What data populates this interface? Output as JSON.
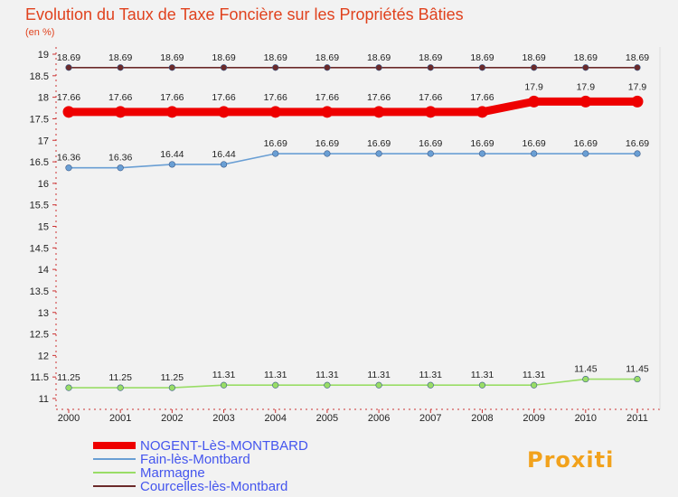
{
  "chart_data": {
    "type": "line",
    "title": "Evolution du Taux de Taxe Foncière sur les Propriétés Bâties",
    "ylabel": "(en %)",
    "xlabel": "",
    "x": [
      "2000",
      "2001",
      "2002",
      "2003",
      "2004",
      "2005",
      "2006",
      "2007",
      "2008",
      "2009",
      "2010",
      "2011"
    ],
    "yticks": [
      "11",
      "11.5",
      "12",
      "12.5",
      "13",
      "13.5",
      "14",
      "14.5",
      "15",
      "15.5",
      "16",
      "16.5",
      "17",
      "17.5",
      "18",
      "18.5",
      "19"
    ],
    "ylim": [
      11,
      19
    ],
    "grid": false,
    "legend_position": "bottom-left",
    "series": [
      {
        "name": "Courcelles-lès-Montbard",
        "color": "#6b2a2a",
        "values": [
          18.69,
          18.69,
          18.69,
          18.69,
          18.69,
          18.69,
          18.69,
          18.69,
          18.69,
          18.69,
          18.69,
          18.69
        ],
        "labels": [
          "18.69",
          "18.69",
          "18.69",
          "18.69",
          "18.69",
          "18.69",
          "18.69",
          "18.69",
          "18.69",
          "18.69",
          "18.69",
          "18.69"
        ]
      },
      {
        "name": "NOGENT-LèS-MONTBARD",
        "color": "#ee0000",
        "values": [
          17.66,
          17.66,
          17.66,
          17.66,
          17.66,
          17.66,
          17.66,
          17.66,
          17.66,
          17.9,
          17.9,
          17.9
        ],
        "labels": [
          "17.66",
          "17.66",
          "17.66",
          "17.66",
          "17.66",
          "17.66",
          "17.66",
          "17.66",
          "17.66",
          "17.9",
          "17.9",
          "17.9"
        ]
      },
      {
        "name": "Fain-lès-Montbard",
        "color": "#6a9fd4",
        "values": [
          16.36,
          16.36,
          16.44,
          16.44,
          16.69,
          16.69,
          16.69,
          16.69,
          16.69,
          16.69,
          16.69,
          16.69
        ],
        "labels": [
          "16.36",
          "16.36",
          "16.44",
          "16.44",
          "16.69",
          "16.69",
          "16.69",
          "16.69",
          "16.69",
          "16.69",
          "16.69",
          "16.69"
        ]
      },
      {
        "name": "Marmagne",
        "color": "#99dd66",
        "values": [
          11.25,
          11.25,
          11.25,
          11.31,
          11.31,
          11.31,
          11.31,
          11.31,
          11.31,
          11.31,
          11.45,
          11.45
        ],
        "labels": [
          "11.25",
          "11.25",
          "11.25",
          "11.31",
          "11.31",
          "11.31",
          "11.31",
          "11.31",
          "11.31",
          "11.31",
          "11.45",
          "11.45"
        ]
      }
    ],
    "legend": [
      {
        "name": "NOGENT-LèS-MONTBARD",
        "color": "#ee0000",
        "text_color": "#4455ee"
      },
      {
        "name": "Fain-lès-Montbard",
        "color": "#6a9fd4",
        "text_color": "#4455ee"
      },
      {
        "name": "Marmagne",
        "color": "#99dd66",
        "text_color": "#4455ee"
      },
      {
        "name": "Courcelles-lès-Montbard",
        "color": "#6b2a2a",
        "text_color": "#4455ee"
      }
    ]
  },
  "logo": {
    "text": "Proxiti"
  }
}
